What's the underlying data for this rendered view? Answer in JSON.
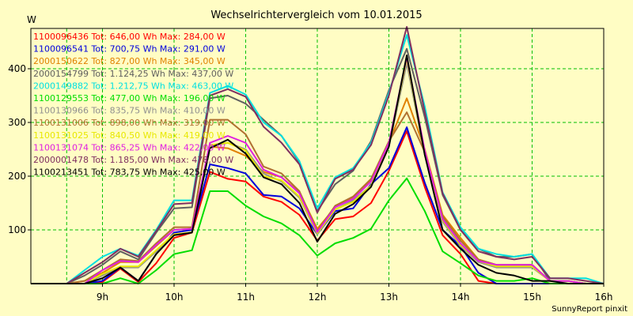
{
  "chart_data": {
    "type": "line",
    "title": "Wechselrichtervergleich vom 10.01.2015",
    "ylabel": "W",
    "footer": "SunnyReport pinxit",
    "grid": true,
    "x_unit": "hour",
    "ylim": [
      0,
      475
    ],
    "yticks": [
      100,
      200,
      300,
      400
    ],
    "xticks": [
      {
        "value": 9,
        "label": "9h"
      },
      {
        "value": 10,
        "label": "10h"
      },
      {
        "value": 11,
        "label": "11h"
      },
      {
        "value": 12,
        "label": "12h"
      },
      {
        "value": 13,
        "label": "13h"
      },
      {
        "value": 14,
        "label": "14h"
      },
      {
        "value": 15,
        "label": "15h"
      },
      {
        "value": 16,
        "label": "16h"
      }
    ],
    "x": [
      8.0,
      8.25,
      8.5,
      8.75,
      9.0,
      9.25,
      9.5,
      9.75,
      10.0,
      10.25,
      10.5,
      10.75,
      11.0,
      11.25,
      11.5,
      11.75,
      12.0,
      12.25,
      12.5,
      12.75,
      13.0,
      13.25,
      13.5,
      13.75,
      14.0,
      14.25,
      14.5,
      14.75,
      15.0,
      15.25,
      15.5,
      15.75,
      16.0
    ],
    "series": [
      {
        "label": "1100096436 Tot: 646,00 Wh Max: 284,00 W",
        "color": "#ff0000",
        "values": [
          0,
          0,
          0,
          0,
          3,
          28,
          3,
          38,
          85,
          95,
          208,
          195,
          190,
          162,
          152,
          128,
          80,
          120,
          125,
          150,
          210,
          284,
          180,
          90,
          55,
          5,
          0,
          0,
          0,
          0,
          0,
          0,
          0
        ]
      },
      {
        "label": "1100096541 Tot: 700,75 Wh Max: 291,00 W",
        "color": "#0000dd",
        "values": [
          0,
          0,
          0,
          0,
          5,
          30,
          5,
          55,
          95,
          100,
          222,
          215,
          205,
          165,
          162,
          140,
          92,
          135,
          140,
          185,
          215,
          291,
          188,
          100,
          70,
          20,
          0,
          0,
          0,
          0,
          0,
          0,
          0
        ]
      },
      {
        "label": "2000150622 Tot: 827,00 Wh Max: 345,00 W",
        "color": "#e08000",
        "values": [
          0,
          0,
          0,
          5,
          20,
          40,
          40,
          70,
          100,
          102,
          255,
          252,
          238,
          208,
          198,
          170,
          102,
          142,
          160,
          192,
          262,
          345,
          250,
          128,
          85,
          45,
          35,
          35,
          35,
          5,
          5,
          0,
          0
        ]
      },
      {
        "label": "2000154799 Tot: 1.124,25 Wh Max: 437,00 W",
        "color": "#606060",
        "values": [
          0,
          0,
          0,
          15,
          35,
          60,
          45,
          95,
          140,
          142,
          345,
          350,
          335,
          305,
          275,
          225,
          135,
          185,
          210,
          265,
          360,
          437,
          310,
          165,
          100,
          65,
          50,
          50,
          55,
          5,
          5,
          0,
          0
        ]
      },
      {
        "label": "2000149882 Tot: 1.212,75 Wh Max: 463,00 W",
        "color": "#00e0e0",
        "values": [
          0,
          0,
          0,
          25,
          50,
          65,
          52,
          100,
          155,
          155,
          355,
          368,
          352,
          300,
          275,
          228,
          140,
          198,
          215,
          262,
          355,
          463,
          330,
          170,
          105,
          65,
          55,
          50,
          55,
          10,
          10,
          10,
          0
        ]
      },
      {
        "label": "1100129553 Tot: 477,00 Wh Max: 196,00 W",
        "color": "#00dd00",
        "values": [
          0,
          0,
          0,
          0,
          0,
          10,
          0,
          25,
          55,
          62,
          172,
          172,
          145,
          125,
          112,
          90,
          52,
          75,
          85,
          102,
          155,
          196,
          135,
          60,
          38,
          15,
          5,
          5,
          10,
          0,
          0,
          0,
          0
        ]
      },
      {
        "label": "1100130966 Tot: 835,75 Wh Max: 410,00 W",
        "color": "#909090",
        "values": [
          0,
          0,
          0,
          0,
          15,
          30,
          30,
          60,
          90,
          95,
          255,
          262,
          250,
          205,
          190,
          160,
          92,
          138,
          155,
          182,
          255,
          410,
          240,
          115,
          70,
          40,
          30,
          30,
          30,
          5,
          5,
          0,
          0
        ]
      },
      {
        "label": "1100131006 Tot: 898,00 Wh Max: 319,00 W",
        "color": "#b07030",
        "values": [
          0,
          0,
          0,
          5,
          25,
          45,
          42,
          75,
          105,
          105,
          305,
          305,
          278,
          218,
          205,
          172,
          98,
          145,
          162,
          195,
          265,
          319,
          245,
          125,
          80,
          45,
          35,
          35,
          35,
          5,
          5,
          0,
          0
        ]
      },
      {
        "label": "1100131025 Tot: 840,50 Wh Max: 419,00 W",
        "color": "#e8e800",
        "values": [
          0,
          0,
          0,
          0,
          18,
          32,
          32,
          62,
          92,
          95,
          258,
          262,
          248,
          200,
          192,
          162,
          94,
          138,
          152,
          182,
          258,
          419,
          242,
          118,
          72,
          42,
          32,
          32,
          32,
          5,
          5,
          0,
          0
        ]
      },
      {
        "label": "1100131074 Tot: 865,25 Wh Max: 422,00 W",
        "color": "#e020e0",
        "values": [
          0,
          0,
          0,
          0,
          25,
          42,
          40,
          72,
          100,
          102,
          262,
          275,
          262,
          212,
          198,
          168,
          96,
          142,
          158,
          190,
          262,
          422,
          248,
          120,
          75,
          42,
          35,
          35,
          35,
          5,
          5,
          0,
          0
        ]
      },
      {
        "label": "2000001478 Tot: 1.185,00 Wh Max: 478,00 W",
        "color": "#803060",
        "values": [
          0,
          0,
          0,
          20,
          40,
          65,
          50,
          98,
          148,
          150,
          350,
          362,
          348,
          292,
          262,
          222,
          132,
          195,
          212,
          258,
          350,
          478,
          320,
          168,
          100,
          60,
          50,
          45,
          50,
          10,
          10,
          5,
          0
        ]
      },
      {
        "label": "1100213451 Tot: 783,75 Wh Max: 425,00 W",
        "color": "#000000",
        "values": [
          0,
          0,
          0,
          0,
          10,
          30,
          5,
          55,
          90,
          95,
          252,
          268,
          242,
          198,
          185,
          150,
          78,
          130,
          148,
          180,
          255,
          425,
          240,
          100,
          65,
          35,
          20,
          15,
          5,
          5,
          0,
          0,
          0
        ]
      }
    ]
  }
}
